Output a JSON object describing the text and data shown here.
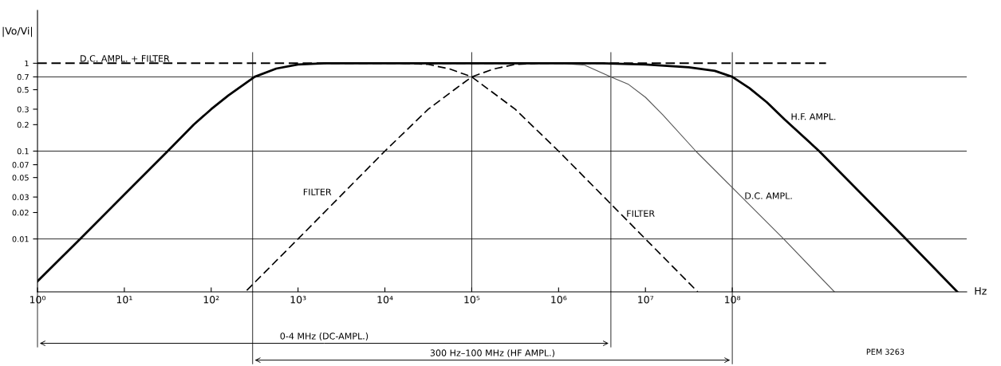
{
  "chart_data": {
    "type": "line",
    "ylabel": "|Vo/Vi|",
    "xlabel": "Hz",
    "log": "xy",
    "xlim": [
      1,
      50000000000.0
    ],
    "ylim": [
      0.0025,
      4
    ],
    "xticks": [
      {
        "value": 1,
        "label": "10⁰"
      },
      {
        "value": 10,
        "label": "10¹"
      },
      {
        "value": 100,
        "label": "10²"
      },
      {
        "value": 1000,
        "label": "10³"
      },
      {
        "value": 10000,
        "label": "10⁴"
      },
      {
        "value": 100000,
        "label": "10⁵"
      },
      {
        "value": 1000000,
        "label": "10⁶"
      },
      {
        "value": 10000000,
        "label": "10⁷"
      },
      {
        "value": 100000000,
        "label": "10⁸"
      }
    ],
    "yticks": [
      1,
      0.7,
      0.5,
      0.3,
      0.2,
      0.1,
      0.07,
      0.05,
      0.03,
      0.02,
      0.01
    ],
    "series": [
      {
        "name": "D.C. AMPL. + FILTER",
        "color": "#000000",
        "line_style": "dashed",
        "x": [
          1,
          1200000000.0
        ],
        "values": [
          1,
          1
        ]
      },
      {
        "name": "FILTER",
        "color": "#000000",
        "line_style": "dashed",
        "x": [
          257,
          1000,
          10000,
          31600,
          63000,
          100000,
          178000,
          316000,
          630000
        ],
        "values": [
          0.0026,
          0.01,
          0.1,
          0.3,
          0.5,
          0.7,
          0.86,
          0.97,
          1.0
        ]
      },
      {
        "name": "FILTER",
        "color": "#000000",
        "line_style": "dashed",
        "x": [
          15800,
          31600,
          56000,
          100000,
          158000,
          316000,
          1000000,
          10000000,
          40000000
        ],
        "values": [
          1.0,
          0.97,
          0.86,
          0.7,
          0.5,
          0.3,
          0.1,
          0.01,
          0.0025
        ]
      },
      {
        "name": "D.C. AMPL.",
        "color": "#555555",
        "line_style": "solid",
        "x": [
          1000000,
          2000000,
          4000000,
          6300000,
          10000000,
          15800000,
          38000000,
          390000000,
          1500000000.0
        ],
        "values": [
          1.0,
          0.95,
          0.7,
          0.58,
          0.41,
          0.26,
          0.1,
          0.01,
          0.0025
        ]
      },
      {
        "name": "H.F. AMPL.",
        "color": "#000000",
        "line_style": "solid",
        "x": [
          1,
          3.16,
          10,
          31.6,
          63,
          100,
          158,
          316,
          562,
          1000,
          2000,
          3160000,
          10000000,
          31600000,
          63000000,
          100000000,
          158000000,
          250000000,
          400000000,
          1000000000.0,
          10000000000.0,
          39000000000.0
        ],
        "values": [
          0.0033,
          0.0102,
          0.032,
          0.1,
          0.2,
          0.3,
          0.43,
          0.7,
          0.87,
          0.97,
          1.0,
          1.0,
          0.97,
          0.9,
          0.82,
          0.7,
          0.52,
          0.36,
          0.23,
          0.1,
          0.01,
          0.0025
        ]
      }
    ],
    "ref_lines": [
      {
        "axis": "x",
        "value": 300,
        "color": "#000000"
      },
      {
        "axis": "x",
        "value": 100000,
        "color": "#000000"
      },
      {
        "axis": "x",
        "value": 4000000,
        "color": "#000000"
      },
      {
        "axis": "x",
        "value": 100000000,
        "color": "#000000"
      },
      {
        "axis": "y",
        "value": 0.7,
        "color": "#000000"
      },
      {
        "axis": "y",
        "value": 0.1,
        "color": "#000000"
      },
      {
        "axis": "y",
        "value": 0.01,
        "color": "#000000"
      }
    ],
    "annotations": [
      "0-4 MHz (DC-AMPL.)",
      "300 Hz–100 MHz (HF AMPL.)",
      "PEM 3263"
    ],
    "legend": false,
    "grid": false
  }
}
